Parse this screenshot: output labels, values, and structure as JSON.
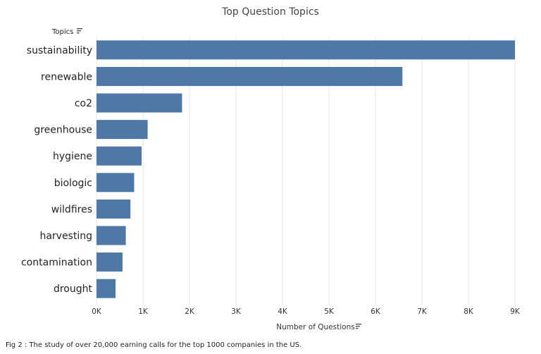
{
  "caption": "Fig 2 : The study of over 20,000 earning calls for the top 1000 companies in the US.",
  "colors": {
    "bar": "#4e79a7",
    "grid": "#e6e6e6"
  },
  "icons": {
    "sort": "sort-descending-icon"
  },
  "chart_data": {
    "type": "bar",
    "orientation": "horizontal",
    "title": "Top Question Topics",
    "category_header": "Topics",
    "xlabel": "Number of Questions",
    "ylabel": "",
    "categories": [
      "sustainability",
      "renewable",
      "co2",
      "greenhouse",
      "hygiene",
      "biologic",
      "wildfires",
      "harvesting",
      "contamination",
      "drought"
    ],
    "values": [
      9000,
      6580,
      1840,
      1100,
      970,
      810,
      730,
      630,
      560,
      410
    ],
    "xlim": [
      0,
      9000
    ],
    "xticks": [
      0,
      1000,
      2000,
      3000,
      4000,
      5000,
      6000,
      7000,
      8000,
      9000
    ],
    "xtick_labels": [
      "0K",
      "1K",
      "2K",
      "3K",
      "4K",
      "5K",
      "6K",
      "7K",
      "8K",
      "9K"
    ],
    "grid": true,
    "legend": "none"
  }
}
